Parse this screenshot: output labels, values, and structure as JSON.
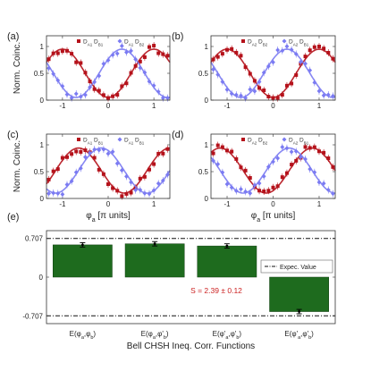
{
  "colors": {
    "red": "#b5121b",
    "blue": "#7b7bf2",
    "green": "#1e6b1e",
    "annotation": "#cc2222"
  },
  "chart_data": [
    {
      "panel": "(a)",
      "type": "scatter",
      "ylabel": "Norm. Coinc.",
      "xlabel": "",
      "xlim": [
        -1.35,
        1.35
      ],
      "ylim": [
        0,
        1.2
      ],
      "xticks": [
        "-1",
        "0",
        "1"
      ],
      "yticks": [
        "0",
        "0.5",
        "1"
      ],
      "legend": [
        "D_A1 D_B1",
        "D_A1 D_B2"
      ],
      "fit": {
        "amp": 0.45,
        "offset": 0.5,
        "red_phase": 0.0,
        "blue_phase": 0.3
      }
    },
    {
      "panel": "(b)",
      "type": "scatter",
      "ylabel": "",
      "xlabel": "",
      "xlim": [
        -1.35,
        1.35
      ],
      "ylim": [
        0,
        1.2
      ],
      "xticks": [
        "-1",
        "0",
        "1"
      ],
      "yticks": [
        "0",
        "0.5",
        "1"
      ],
      "legend": [
        "D_A2 D_B2",
        "D_A2 D_B1"
      ],
      "fit": {
        "amp": 0.45,
        "offset": 0.5,
        "red_phase": 0.0,
        "blue_phase": 0.3
      }
    },
    {
      "panel": "(c)",
      "type": "scatter",
      "ylabel": "Norm. Coinc.",
      "xlabel": "φ_a [π units]",
      "xlim": [
        -1.35,
        1.35
      ],
      "ylim": [
        0,
        1.2
      ],
      "xticks": [
        "-1",
        "0",
        "1"
      ],
      "yticks": [
        "0",
        "0.5",
        "1"
      ],
      "legend": [
        "D_A1 D_B1",
        "D_A1 D_B1"
      ],
      "fit": {
        "amp": 0.42,
        "offset": 0.52,
        "red_phase": 0.35,
        "blue_phase": -0.15
      }
    },
    {
      "panel": "(d)",
      "type": "scatter",
      "ylabel": "",
      "xlabel": "φ_a [π units]",
      "xlim": [
        -1.35,
        1.35
      ],
      "ylim": [
        0,
        1.2
      ],
      "xticks": [
        "-1",
        "0",
        "1"
      ],
      "yticks": [
        "0",
        "0.5",
        "1"
      ],
      "legend": [
        "D_A2 D_B2",
        "D_A2 D_B1"
      ],
      "fit": {
        "amp": 0.42,
        "offset": 0.52,
        "red_phase": -0.15,
        "blue_phase": 0.35
      }
    },
    {
      "panel": "(e)",
      "type": "bar",
      "xlabel": "Bell CHSH Ineq. Corr. Functions",
      "categories": [
        "E(φ_a,φ_b)",
        "E(φ_a,φ'_b)",
        "E(φ'_a,φ'_b)",
        "E(φ'_a,φ'_b)"
      ],
      "values": [
        0.59,
        0.61,
        0.57,
        -0.63
      ],
      "errors": [
        0.04,
        0.04,
        0.04,
        0.04
      ],
      "ylim": [
        -0.85,
        0.85
      ],
      "yticks": [
        "0.707",
        "0",
        "-0.707"
      ],
      "reference_lines": [
        0.707,
        -0.707
      ],
      "legend": [
        "Expec. Value"
      ],
      "annotation": "S = 2.39 ± 0.12"
    }
  ]
}
